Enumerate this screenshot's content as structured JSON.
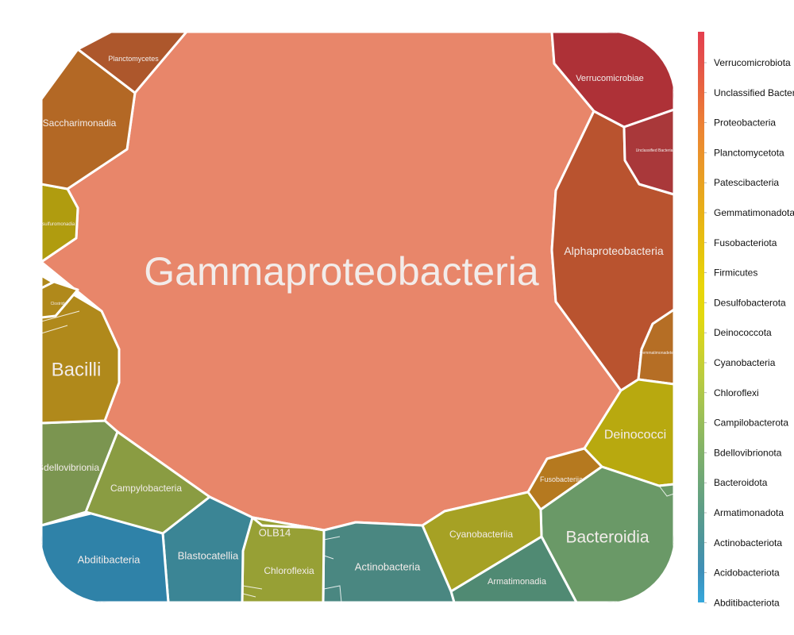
{
  "chart_data": {
    "type": "voronoi-treemap",
    "title": "",
    "cells": [
      {
        "label": "Gammaproteobacteria",
        "phylum": "Proteobacteria",
        "color": "#e8866a"
      },
      {
        "label": "Alphaproteobacteria",
        "phylum": "Proteobacteria",
        "color": "#b9532f"
      },
      {
        "label": "Verrucomicrobiae",
        "phylum": "Verrucomicrobiota",
        "color": "#ae3137"
      },
      {
        "label": "Unclassified Bacteria",
        "phylum": "Unclassified Bacteria",
        "color": "#a9383a"
      },
      {
        "label": "Gemmatimonadetes",
        "phylum": "Gemmatimonadota",
        "color": "#b56e25"
      },
      {
        "label": "Deinococci",
        "phylum": "Deinococcota",
        "color": "#b8a90f"
      },
      {
        "label": "Fusobacteriia",
        "phylum": "Fusobacteriota",
        "color": "#b5791f"
      },
      {
        "label": "Bacteroidia",
        "phylum": "Bacteroidota",
        "color": "#6a9967"
      },
      {
        "label": "Armatimonadia",
        "phylum": "Armatimonadota",
        "color": "#508a73"
      },
      {
        "label": "Cyanobacteriia",
        "phylum": "Cyanobacteria",
        "color": "#a6a124"
      },
      {
        "label": "Actinobacteria",
        "phylum": "Actinobacteriota",
        "color": "#4a8781"
      },
      {
        "label": "Chloroflexia",
        "phylum": "Chloroflexi",
        "color": "#97a035"
      },
      {
        "label": "OLB14",
        "phylum": "Chloroflexi",
        "color": "#97a035"
      },
      {
        "label": "Blastocatellia",
        "phylum": "Acidobacteriota",
        "color": "#3b8595"
      },
      {
        "label": "Abditibacteria",
        "phylum": "Abditibacteriota",
        "color": "#2f82a8"
      },
      {
        "label": "Campylobacteria",
        "phylum": "Campilobacterota",
        "color": "#8a9c42"
      },
      {
        "label": "Bdellovibrionia",
        "phylum": "Bdellovibrionota",
        "color": "#7b9550"
      },
      {
        "label": "Bacilli",
        "phylum": "Firmicutes",
        "color": "#b0891b"
      },
      {
        "label": "Clostridia",
        "phylum": "Firmicutes",
        "color": "#b0891b"
      },
      {
        "label": "Desulfuromonadia",
        "phylum": "Desulfobacterota",
        "color": "#b09c0f"
      },
      {
        "label": "Saccharimonadia",
        "phylum": "Patescibacteria",
        "color": "#b36825"
      },
      {
        "label": "Planctomycetes",
        "phylum": "Planctomycetota",
        "color": "#ad572c"
      }
    ],
    "legend": {
      "placement": "right",
      "entries": [
        {
          "label": "Verrucomicrobiota",
          "color": "#e43f4e"
        },
        {
          "label": "Unclassified Bacteria",
          "color": "#e4534a"
        },
        {
          "label": "Proteobacteria",
          "color": "#e96a3d"
        },
        {
          "label": "Planctomycetota",
          "color": "#ec8334"
        },
        {
          "label": "Patescibacteria",
          "color": "#ea952a"
        },
        {
          "label": "Gemmatimonadota",
          "color": "#e8a51f"
        },
        {
          "label": "Fusobacteriota",
          "color": "#e8b514"
        },
        {
          "label": "Firmicutes",
          "color": "#e6c50d"
        },
        {
          "label": "Desulfobacterota",
          "color": "#e9d509"
        },
        {
          "label": "Deinococcota",
          "color": "#e2d80f"
        },
        {
          "label": "Cyanobacteria",
          "color": "#cfd22a"
        },
        {
          "label": "Chloroflexi",
          "color": "#b8cb42"
        },
        {
          "label": "Campilobacterota",
          "color": "#9fc155"
        },
        {
          "label": "Bdellovibrionota",
          "color": "#87b565"
        },
        {
          "label": "Bacteroidota",
          "color": "#72a975"
        },
        {
          "label": "Armatimonadota",
          "color": "#5f9e86"
        },
        {
          "label": "Actinobacteriota",
          "color": "#4e969b"
        },
        {
          "label": "Acidobacteriota",
          "color": "#3f8fb8"
        },
        {
          "label": "Abditibacteriota",
          "color": "#36a8dc"
        }
      ]
    }
  }
}
